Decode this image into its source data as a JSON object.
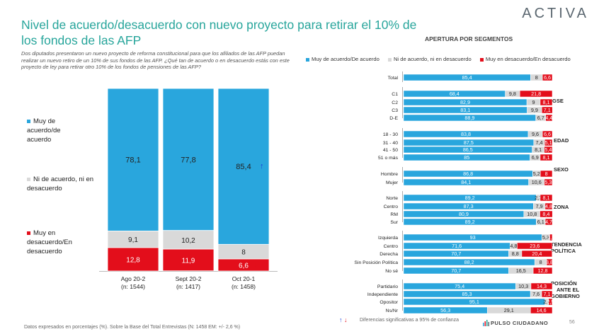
{
  "title": "Nivel de acuerdo/desacuerdo con nuevo proyecto para retirar el 10% de los fondos de las AFP",
  "brand": "ACTIVA",
  "subtitle": "Dos diputados presentaron un nuevo proyecto de reforma constitucional para que los afiliados de las AFP puedan realizar un nuevo retiro de un 10% de sus fondos de las AFP. ¿Qué tan de acuerdo o en desacuerdo estás con este proyecto de ley para retirar otro 10% de los fondos de pensiones de las AFP?",
  "colors": {
    "agree": "#29a6dd",
    "neutral": "#d9d9d9",
    "disagree": "#e30e1b",
    "title": "#27a59b"
  },
  "left_legend": [
    {
      "label": "Muy de acuerdo/de acuerdo",
      "color": "#29a6dd"
    },
    {
      "label": "Ni de acuerdo, ni en desacuerdo",
      "color": "#d9d9d9"
    },
    {
      "label": "Muy en desacuerdo/En desacuerdo",
      "color": "#e30e1b"
    }
  ],
  "segments_title": "APERTURA POR SEGMENTOS",
  "segments_legend": [
    "Muy de acuerdo/De acuerdo",
    "Ni de acuerdo, ni en desacuerdo",
    "Muy en desacuerdo/En desacuerdo"
  ],
  "footnote": "Datos expresados en porcentajes (%). Sobre la Base del Total Entrevistas (N: 1458  EM: +/- 2,6 %)",
  "confidence_note": "Diferencias  significativas a 95% de confianza",
  "arrow_up": "↑",
  "arrow_down": "↓",
  "footer_brand": "PULSO CIUDADANO",
  "page_number": "56",
  "chart_data": [
    {
      "type": "bar",
      "stacked": true,
      "categories": [
        "Ago 20-2\n(n: 1544)",
        "Sept 20-2\n(n: 1417)",
        "Oct 20-1\n(n: 1458)"
      ],
      "series": [
        {
          "name": "Muy de acuerdo/de acuerdo",
          "values": [
            78.1,
            77.8,
            85.4
          ]
        },
        {
          "name": "Ni de acuerdo, ni en desacuerdo",
          "values": [
            9.1,
            10.2,
            8
          ]
        },
        {
          "name": "Muy en desacuerdo/En desacuerdo",
          "values": [
            12.8,
            11.9,
            6.6
          ]
        }
      ],
      "value_labels": [
        [
          "78,1",
          "9,1",
          "12,8"
        ],
        [
          "77,8",
          "10,2",
          "11,9"
        ],
        [
          "85,4",
          "8",
          "6,6"
        ]
      ],
      "annotations": {
        "Oct 20-1": {
          "agree": "↑",
          "disagree": "↓"
        }
      },
      "ylim": [
        0,
        100
      ]
    },
    {
      "type": "bar",
      "orientation": "horizontal",
      "stacked": true,
      "groups": [
        {
          "name": "",
          "rows": [
            {
              "label": "Total",
              "values": [
                85.4,
                8,
                6.6
              ],
              "labels": [
                "85,4",
                "8",
                "6,6"
              ]
            }
          ]
        },
        {
          "name": "GSE",
          "rows": [
            {
              "label": "C1",
              "values": [
                68.4,
                9.8,
                21.8
              ],
              "labels": [
                "68,4",
                "9,8",
                "21,8"
              ]
            },
            {
              "label": "C2",
              "values": [
                82.9,
                9,
                8.1
              ],
              "labels": [
                "82,9",
                "9",
                "8,1"
              ]
            },
            {
              "label": "C3",
              "values": [
                83.1,
                9.9,
                7.1
              ],
              "labels": [
                "83,1",
                "9,9",
                "7,1"
              ]
            },
            {
              "label": "D-E",
              "values": [
                88.9,
                6.7,
                4.4
              ],
              "labels": [
                "88,9",
                "6,7",
                "4,4"
              ]
            }
          ]
        },
        {
          "name": "EDAD",
          "rows": [
            {
              "label": "18 - 30",
              "values": [
                83.8,
                9.6,
                6.6
              ],
              "labels": [
                "83,8",
                "9,6",
                "6,6"
              ]
            },
            {
              "label": "31 - 40",
              "values": [
                87.5,
                7.4,
                5.1
              ],
              "labels": [
                "87,5",
                "7,4",
                "5,1"
              ]
            },
            {
              "label": "41 - 50",
              "values": [
                86.5,
                8.1,
                5.4
              ],
              "labels": [
                "86,5",
                "8,1",
                "5,4"
              ]
            },
            {
              "label": "51 o más",
              "values": [
                85,
                6.9,
                8.1
              ],
              "labels": [
                "85",
                "6,9",
                "8,1"
              ]
            }
          ]
        },
        {
          "name": "SEXO",
          "rows": [
            {
              "label": "Hombre",
              "values": [
                86.8,
                5.2,
                8
              ],
              "labels": [
                "86,8",
                "5,2",
                "8"
              ]
            },
            {
              "label": "Mujer",
              "values": [
                84.1,
                10.6,
                5.3
              ],
              "labels": [
                "84,1",
                "10,6",
                "5,3"
              ]
            }
          ]
        },
        {
          "name": "ZONA",
          "rows": [
            {
              "label": "Norte",
              "values": [
                89.2,
                2.7,
                8.1
              ],
              "labels": [
                "89,2",
                "2,7",
                "8,1"
              ]
            },
            {
              "label": "Centro",
              "values": [
                87.3,
                7.9,
                4.8
              ],
              "labels": [
                "87,3",
                "7,9",
                "4,8"
              ]
            },
            {
              "label": "RM",
              "values": [
                80.9,
                10.8,
                8.4
              ],
              "labels": [
                "80,9",
                "10,8",
                "8,4"
              ]
            },
            {
              "label": "Sur",
              "values": [
                89.2,
                6.1,
                4.7
              ],
              "labels": [
                "89,2",
                "6,1",
                "4,7"
              ]
            }
          ]
        },
        {
          "name": "TENDENCIA POLÍTICA",
          "rows": [
            {
              "label": "Izquierda",
              "values": [
                93,
                5.3,
                1.7
              ],
              "labels": [
                "93",
                "5,3",
                "1,7"
              ]
            },
            {
              "label": "Centro",
              "values": [
                71.6,
                4.8,
                23.6
              ],
              "labels": [
                "71,6",
                "4,8",
                "23,6"
              ]
            },
            {
              "label": "Derecha",
              "values": [
                70.7,
                8.8,
                20.4
              ],
              "labels": [
                "70,7",
                "8,8",
                "20,4"
              ]
            },
            {
              "label": "Sin Posición Política",
              "values": [
                88.2,
                8,
                3.8
              ],
              "labels": [
                "88,2",
                "8",
                "3,8"
              ]
            },
            {
              "label": "No sé",
              "values": [
                70.7,
                16.5,
                12.8
              ],
              "labels": [
                "70,7",
                "16,5",
                "12,8"
              ]
            }
          ]
        },
        {
          "name": "POSICIÓN ANTE EL GOBIERNO",
          "rows": [
            {
              "label": "Partidario",
              "values": [
                75.4,
                10.3,
                14.3
              ],
              "labels": [
                "75,4",
                "10,3",
                "14,3"
              ]
            },
            {
              "label": "Independiente",
              "values": [
                85.3,
                7.6,
                7.1
              ],
              "labels": [
                "85,3",
                "7,6",
                "7,1"
              ]
            },
            {
              "label": "Opositor",
              "values": [
                95.1,
                2.4,
                2.5
              ],
              "labels": [
                "95,1",
                "2,4",
                "2,5"
              ]
            },
            {
              "label": "Ns/Nr",
              "values": [
                56.3,
                29.1,
                14.6
              ],
              "labels": [
                "56,3",
                "29,1",
                "14,6"
              ]
            }
          ]
        }
      ],
      "xlim": [
        0,
        100
      ]
    }
  ]
}
